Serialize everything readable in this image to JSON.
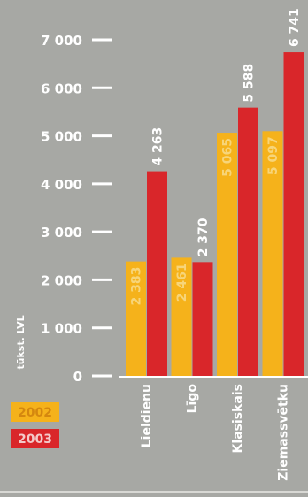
{
  "chart_data": {
    "type": "bar",
    "title": "",
    "ylabel": "tūkst. LVL",
    "xlabel": "",
    "ylim": [
      0,
      7000
    ],
    "yticks": [
      {
        "value": 0,
        "label": "0"
      },
      {
        "value": 1000,
        "label": "1 000"
      },
      {
        "value": 2000,
        "label": "2 000"
      },
      {
        "value": 3000,
        "label": "3 000"
      },
      {
        "value": 4000,
        "label": "4 000"
      },
      {
        "value": 5000,
        "label": "5 000"
      },
      {
        "value": 6000,
        "label": "6 000"
      },
      {
        "value": 7000,
        "label": "7 000"
      }
    ],
    "categories": [
      "Lieldienu",
      "Līgo",
      "Klasiskais",
      "Ziemassvētku"
    ],
    "series": [
      {
        "name": "2002",
        "color": "#f5b21b",
        "values": [
          2383,
          2461,
          5065,
          5097
        ],
        "labels": [
          "2 383",
          "2 461",
          "5 065",
          "5 097"
        ]
      },
      {
        "name": "2003",
        "color": "#d9262a",
        "values": [
          4263,
          2370,
          5588,
          6741
        ],
        "labels": [
          "4 263",
          "2 370",
          "5 588",
          "6 741"
        ]
      }
    ],
    "legend": {
      "position": "bottom-left",
      "items": [
        "2002",
        "2003"
      ]
    },
    "grid": false,
    "colors": {
      "background": "#a7a8a4",
      "text": "#ffffff",
      "axis": "#ffffff"
    }
  }
}
